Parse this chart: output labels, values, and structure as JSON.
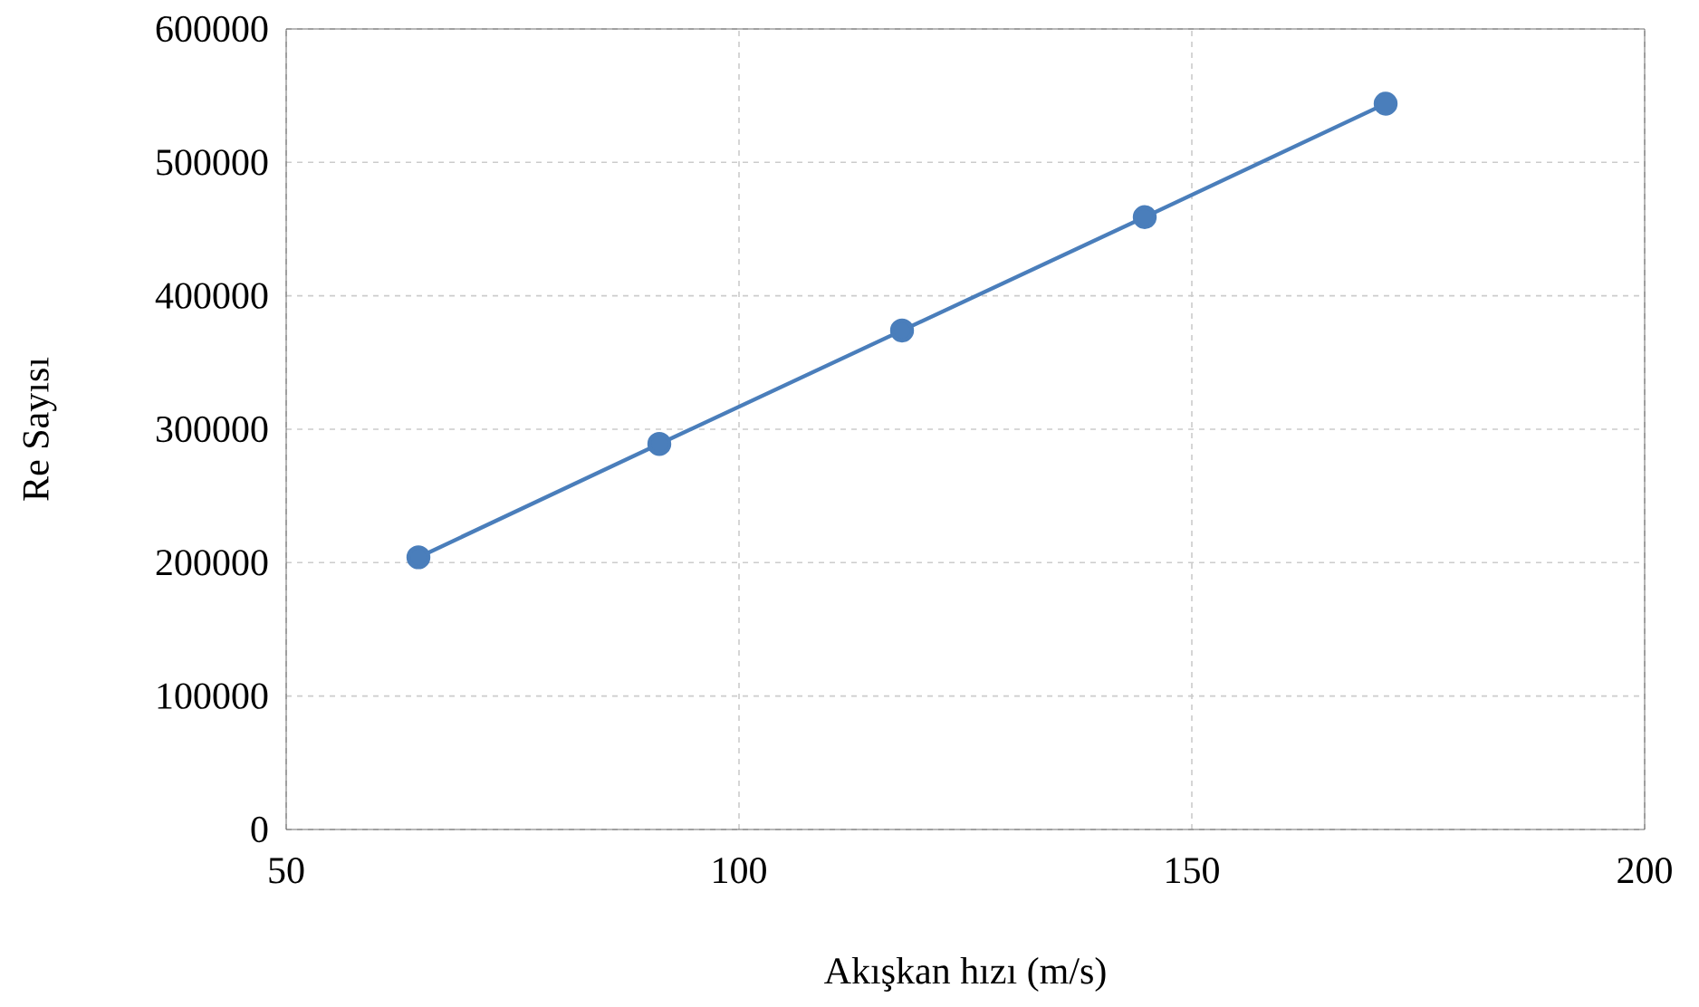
{
  "chart_data": {
    "type": "line",
    "xlabel": "Akışkan hızı (m/s)",
    "ylabel": "Re Sayısı",
    "x": [
      64.6,
      91.2,
      118,
      144.8,
      171.4
    ],
    "series": [
      {
        "color": "#4a7ebb",
        "values": [
          204000,
          289000,
          374000,
          459000,
          544000
        ]
      }
    ],
    "xlim": [
      50,
      200
    ],
    "xticks": [
      50,
      100,
      150,
      200
    ],
    "ylim": [
      0,
      600000
    ],
    "yticks": [
      0,
      100000,
      200000,
      300000,
      400000,
      500000,
      600000
    ],
    "grid": true,
    "marker": "circle",
    "line_style": "solid"
  }
}
